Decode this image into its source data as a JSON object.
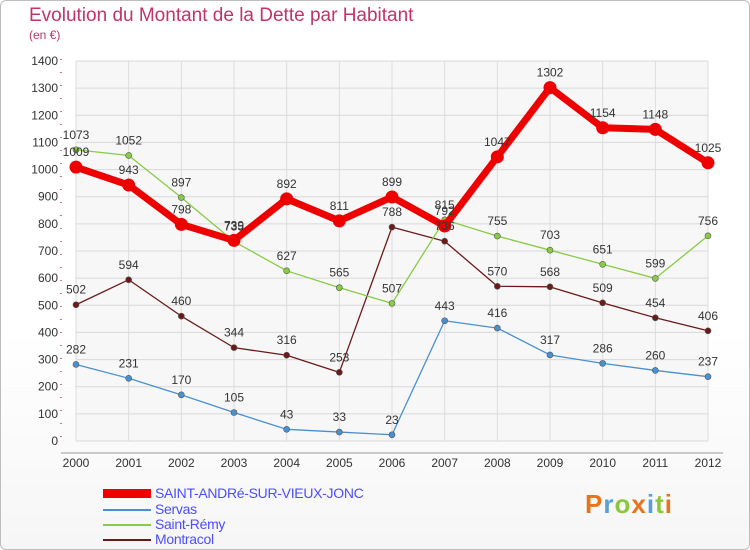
{
  "header": {
    "title": "Evolution du Montant de la Dette par Habitant",
    "subtitle": "(en €)"
  },
  "logo": {
    "letters": [
      "P",
      "r",
      "o",
      "x",
      "i",
      "t",
      "i"
    ],
    "colors": [
      "#e8731a",
      "#5aa0d8",
      "#8cc63f",
      "#e8731a",
      "#5aa0d8",
      "#8cc63f",
      "#e8731a"
    ]
  },
  "chart_data": {
    "type": "line",
    "title": "Evolution du Montant de la Dette par Habitant",
    "subtitle": "(en €)",
    "x": [
      "2000",
      "2001",
      "2002",
      "2003",
      "2004",
      "2005",
      "2006",
      "2007",
      "2008",
      "2009",
      "2010",
      "2011",
      "2012"
    ],
    "ylim": [
      0,
      1400
    ],
    "yticks": [
      0,
      100,
      200,
      300,
      400,
      500,
      600,
      700,
      800,
      900,
      1000,
      1100,
      1200,
      1300,
      1400
    ],
    "grid": true,
    "legend_position": "bottom-left",
    "series": [
      {
        "name": "SAINT-ANDRé-SUR-VIEUX-JONC",
        "color": "#ee0000",
        "values": [
          1009,
          943,
          798,
          739,
          892,
          811,
          899,
          792,
          1047,
          1302,
          1154,
          1148,
          1025
        ]
      },
      {
        "name": "Servas",
        "color": "#4a90d0",
        "values": [
          282,
          231,
          170,
          105,
          43,
          33,
          23,
          443,
          416,
          317,
          286,
          260,
          237
        ]
      },
      {
        "name": "Saint-Rémy",
        "color": "#88cc44",
        "values": [
          1073,
          1052,
          897,
          735,
          627,
          565,
          507,
          815,
          755,
          703,
          651,
          599,
          756
        ]
      },
      {
        "name": "Montracol",
        "color": "#6b1a1a",
        "values": [
          502,
          594,
          460,
          344,
          316,
          253,
          788,
          736,
          570,
          568,
          509,
          454,
          406
        ]
      }
    ]
  }
}
